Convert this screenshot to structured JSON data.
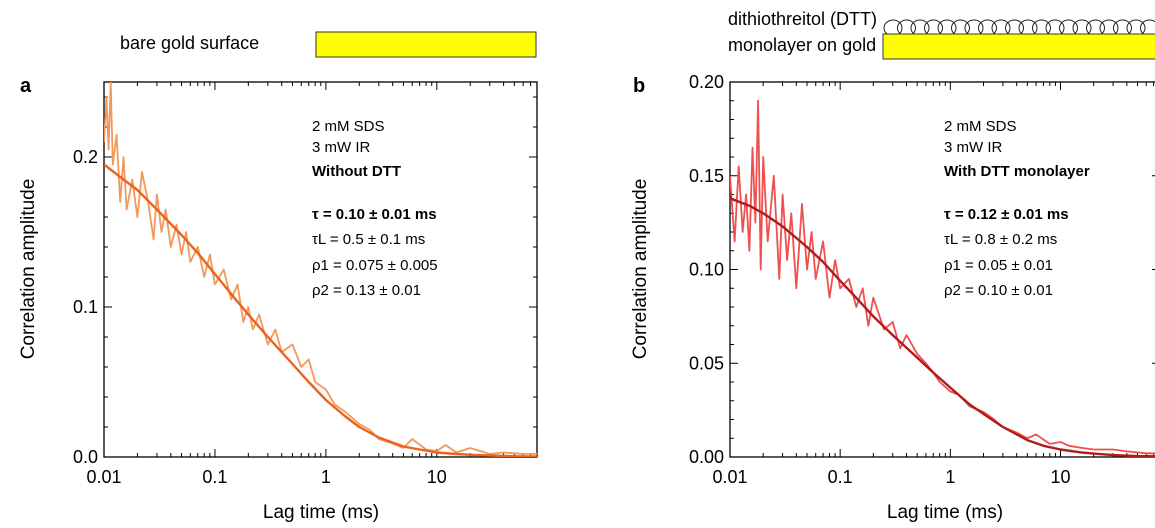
{
  "chart_data": [
    {
      "type": "line",
      "panel_label": "a",
      "header_label": "bare gold surface",
      "xlabel": "Lag time (ms)",
      "ylabel": "Correlation amplitude",
      "x_scale": "log",
      "xlim": [
        0.01,
        80
      ],
      "ylim": [
        0.0,
        0.25
      ],
      "x_ticks": [
        0.01,
        0.1,
        1,
        10
      ],
      "x_tick_labels": [
        "0.01",
        "0.1",
        "1",
        "10"
      ],
      "y_ticks": [
        0.0,
        0.1,
        0.2
      ],
      "y_tick_labels": [
        "0.0",
        "0.1",
        "0.2"
      ],
      "annotations": [
        "2 mM SDS",
        "3 mW IR",
        "Without DTT",
        "τ = 0.10 ± 0.01 ms",
        "τL = 0.5 ± 0.1 ms",
        "ρ1 = 0.075 ± 0.005",
        "ρ2 = 0.13 ± 0.01"
      ],
      "series": [
        {
          "role": "data",
          "color": "#F4975A",
          "x": [
            0.01,
            0.0105,
            0.011,
            0.0115,
            0.012,
            0.013,
            0.014,
            0.015,
            0.016,
            0.018,
            0.02,
            0.022,
            0.025,
            0.028,
            0.03,
            0.033,
            0.036,
            0.04,
            0.045,
            0.05,
            0.055,
            0.06,
            0.07,
            0.08,
            0.09,
            0.1,
            0.12,
            0.14,
            0.16,
            0.18,
            0.2,
            0.22,
            0.25,
            0.3,
            0.35,
            0.4,
            0.5,
            0.6,
            0.7,
            0.8,
            1.0,
            1.2,
            1.5,
            2.0,
            2.5,
            3.0,
            4.0,
            5.0,
            6.0,
            8.0,
            10.0,
            12.0,
            15.0,
            20.0,
            30.0,
            40.0,
            60.0,
            80.0
          ],
          "y": [
            0.21,
            0.24,
            0.205,
            0.25,
            0.195,
            0.215,
            0.17,
            0.2,
            0.165,
            0.185,
            0.16,
            0.19,
            0.17,
            0.145,
            0.175,
            0.15,
            0.165,
            0.14,
            0.155,
            0.135,
            0.15,
            0.13,
            0.14,
            0.12,
            0.135,
            0.115,
            0.125,
            0.105,
            0.115,
            0.09,
            0.1,
            0.085,
            0.095,
            0.075,
            0.085,
            0.07,
            0.075,
            0.06,
            0.065,
            0.05,
            0.045,
            0.035,
            0.03,
            0.022,
            0.018,
            0.012,
            0.009,
            0.006,
            0.012,
            0.005,
            0.004,
            0.008,
            0.003,
            0.006,
            0.002,
            0.003,
            0.002,
            0.002
          ]
        },
        {
          "role": "fit",
          "color": "#E8631C",
          "x": [
            0.01,
            0.015,
            0.02,
            0.03,
            0.05,
            0.07,
            0.1,
            0.15,
            0.2,
            0.3,
            0.5,
            0.7,
            1.0,
            1.5,
            2.0,
            3.0,
            5.0,
            7.0,
            10.0,
            15.0,
            20.0,
            30.0,
            50.0,
            80.0
          ],
          "y": [
            0.195,
            0.185,
            0.178,
            0.165,
            0.148,
            0.136,
            0.122,
            0.106,
            0.095,
            0.08,
            0.062,
            0.05,
            0.038,
            0.027,
            0.02,
            0.013,
            0.007,
            0.005,
            0.003,
            0.002,
            0.0015,
            0.001,
            0.0005,
            0.0003
          ]
        }
      ]
    },
    {
      "type": "line",
      "panel_label": "b",
      "header_label_lines": [
        "dithiothreitol (DTT)",
        "monolayer on gold"
      ],
      "xlabel": "Lag time (ms)",
      "ylabel": "Correlation amplitude",
      "x_scale": "log",
      "xlim": [
        0.01,
        80
      ],
      "ylim": [
        0.0,
        0.2
      ],
      "x_ticks": [
        0.01,
        0.1,
        1,
        10
      ],
      "x_tick_labels": [
        "0.01",
        "0.1",
        "1",
        "10"
      ],
      "y_ticks": [
        0.0,
        0.05,
        0.1,
        0.15,
        0.2
      ],
      "y_tick_labels": [
        "0.00",
        "0.05",
        "0.10",
        "0.15",
        "0.20"
      ],
      "annotations": [
        "2 mM SDS",
        "3 mW IR",
        "With DTT monolayer",
        "τ = 0.12 ± 0.01 ms",
        "τL = 0.8 ± 0.2 ms",
        "ρ1 = 0.05 ± 0.01",
        "ρ2 = 0.10 ± 0.01"
      ],
      "series": [
        {
          "role": "data",
          "color": "#EE5050",
          "x": [
            0.01,
            0.011,
            0.012,
            0.013,
            0.014,
            0.015,
            0.016,
            0.017,
            0.018,
            0.019,
            0.02,
            0.022,
            0.025,
            0.028,
            0.03,
            0.033,
            0.036,
            0.04,
            0.045,
            0.05,
            0.055,
            0.06,
            0.07,
            0.08,
            0.09,
            0.1,
            0.12,
            0.14,
            0.16,
            0.18,
            0.2,
            0.25,
            0.3,
            0.35,
            0.4,
            0.5,
            0.6,
            0.7,
            0.8,
            1.0,
            1.2,
            1.5,
            2.0,
            2.5,
            3.0,
            4.0,
            5.0,
            6.0,
            8.0,
            10.0,
            12.0,
            15.0,
            20.0,
            30.0,
            40.0,
            60.0,
            80.0
          ],
          "y": [
            0.15,
            0.115,
            0.155,
            0.12,
            0.14,
            0.11,
            0.165,
            0.125,
            0.19,
            0.1,
            0.16,
            0.115,
            0.15,
            0.095,
            0.14,
            0.105,
            0.13,
            0.09,
            0.135,
            0.1,
            0.12,
            0.095,
            0.115,
            0.085,
            0.105,
            0.09,
            0.095,
            0.08,
            0.09,
            0.07,
            0.085,
            0.068,
            0.072,
            0.058,
            0.065,
            0.055,
            0.05,
            0.045,
            0.04,
            0.035,
            0.033,
            0.027,
            0.024,
            0.02,
            0.016,
            0.013,
            0.01,
            0.012,
            0.007,
            0.008,
            0.006,
            0.005,
            0.004,
            0.004,
            0.003,
            0.002,
            0.002
          ]
        },
        {
          "role": "fit",
          "color": "#B01C1C",
          "x": [
            0.01,
            0.015,
            0.02,
            0.03,
            0.05,
            0.07,
            0.1,
            0.15,
            0.2,
            0.3,
            0.5,
            0.7,
            1.0,
            1.5,
            2.0,
            3.0,
            5.0,
            7.0,
            10.0,
            15.0,
            20.0,
            30.0,
            50.0,
            80.0
          ],
          "y": [
            0.138,
            0.134,
            0.13,
            0.123,
            0.112,
            0.104,
            0.094,
            0.083,
            0.075,
            0.065,
            0.053,
            0.045,
            0.037,
            0.028,
            0.023,
            0.016,
            0.009,
            0.006,
            0.004,
            0.0025,
            0.0018,
            0.001,
            0.0005,
            0.0003
          ]
        }
      ]
    }
  ]
}
